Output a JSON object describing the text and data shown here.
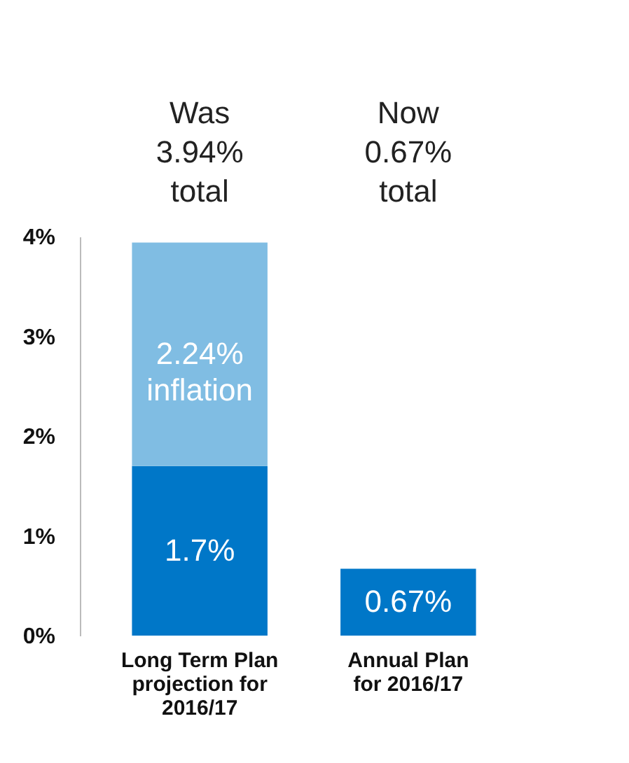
{
  "chart_data": {
    "type": "bar",
    "stacked": true,
    "categories": [
      "Long Term Plan projection for 2016/17",
      "Annual Plan for 2016/17"
    ],
    "series": [
      {
        "color": "#0077c8",
        "values": [
          1.7,
          0.67
        ],
        "value_labels": [
          "1.7%",
          "0.67%"
        ]
      },
      {
        "color": "#80bde3",
        "values": [
          2.24,
          null
        ],
        "value_labels": [
          "2.24% inflation",
          null
        ]
      }
    ],
    "ylim": [
      0,
      4
    ],
    "yticks": [
      {
        "value": 0,
        "label": "0%"
      },
      {
        "value": 1,
        "label": "1%"
      },
      {
        "value": 2,
        "label": "2%"
      },
      {
        "value": 3,
        "label": "3%"
      },
      {
        "value": 4,
        "label": "4%"
      }
    ],
    "grid": false,
    "annotations": [
      "Was 3.94% total",
      "Now 0.67% total"
    ]
  }
}
